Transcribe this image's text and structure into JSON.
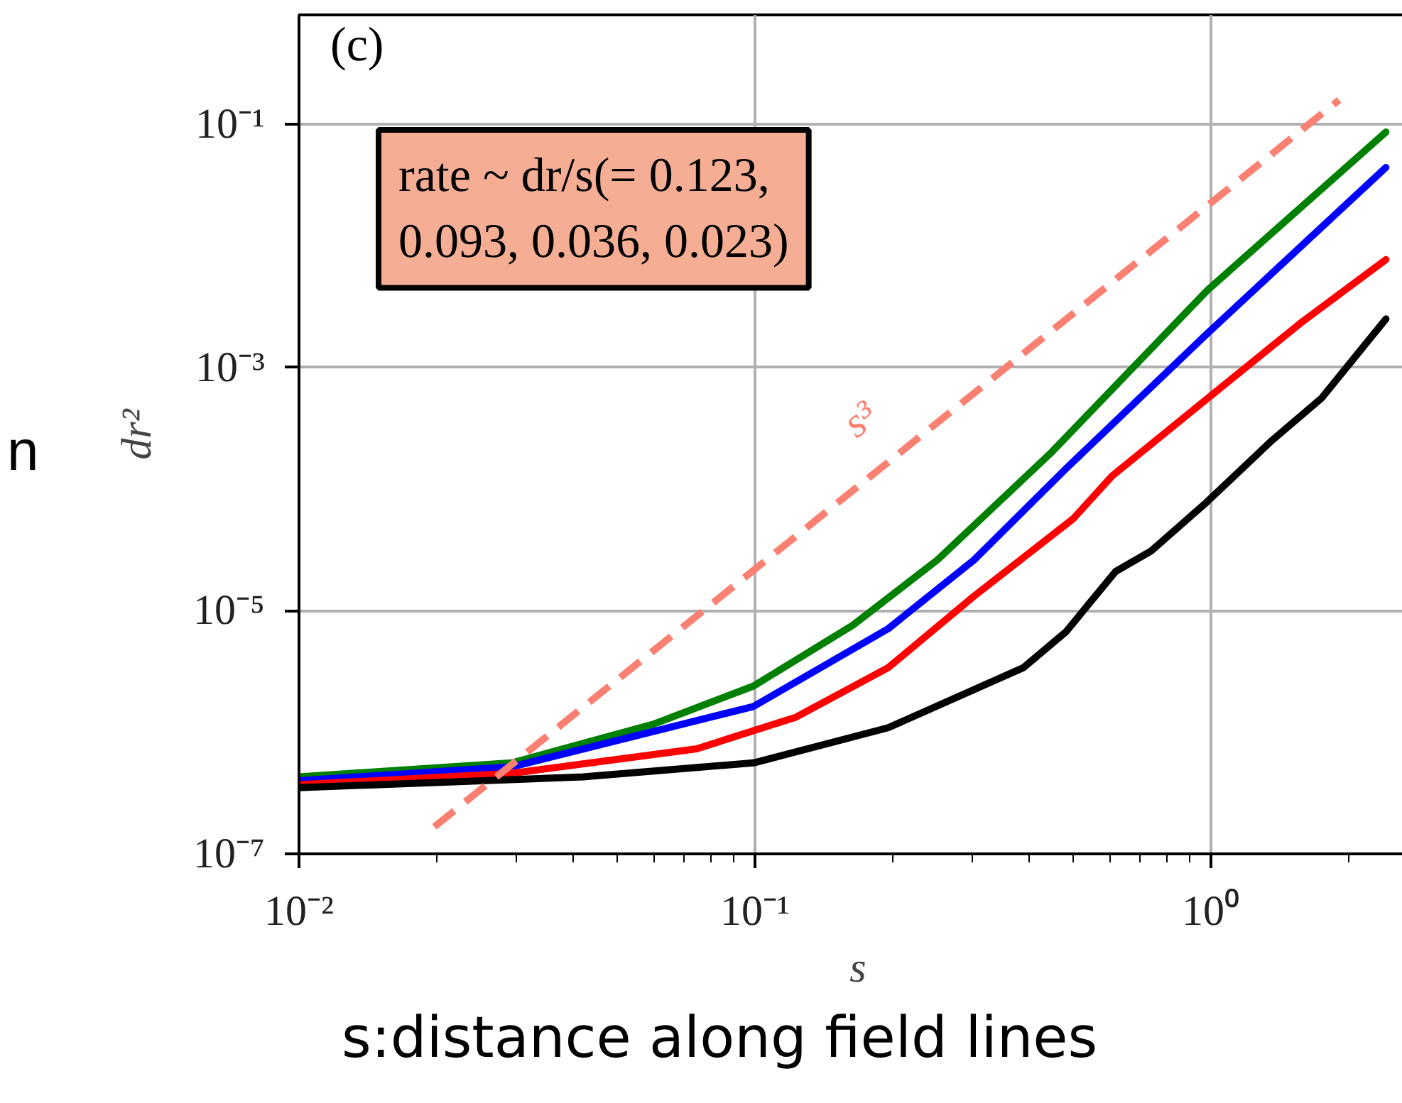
{
  "chart_data": {
    "type": "line",
    "xlabel": "s",
    "ylabel": "dr²",
    "log": "xy",
    "grid": true,
    "line_style": "solid",
    "xlim": [
      0.01,
      2.83
    ],
    "ylim": [
      1e-07,
      0.79
    ],
    "xticks": [
      {
        "value": 0.01,
        "label": "10⁻²"
      },
      {
        "value": 0.1,
        "label": "10⁻¹"
      },
      {
        "value": 1,
        "label": "10⁰"
      }
    ],
    "yticks": [
      {
        "value": 1e-07,
        "label": "10⁻⁷"
      },
      {
        "value": 1e-05,
        "label": "10⁻⁵"
      },
      {
        "value": 0.001,
        "label": "10⁻³"
      },
      {
        "value": 0.1,
        "label": "10⁻¹"
      }
    ],
    "series": [
      {
        "color": "#008000",
        "x": [
          0.01,
          0.0293,
          0.0601,
          0.0993,
          0.164,
          0.251,
          0.447,
          0.982,
          2.42
        ],
        "values": [
          4.3e-07,
          5.6e-07,
          1.17e-06,
          2.4e-06,
          7.6e-06,
          2.6e-05,
          0.0002,
          0.0043,
          0.086
        ]
      },
      {
        "color": "#0000ff",
        "x": [
          0.01,
          0.0293,
          0.0993,
          0.196,
          0.302,
          0.481,
          0.982,
          2.42
        ],
        "values": [
          4e-07,
          5.2e-07,
          1.63e-06,
          7.1e-06,
          2.6e-05,
          0.000147,
          0.0019,
          0.044
        ]
      },
      {
        "color": "#ff0000",
        "x": [
          0.01,
          0.0293,
          0.0745,
          0.123,
          0.196,
          0.302,
          0.499,
          0.607,
          0.986,
          1.57,
          2.42
        ],
        "values": [
          3.7e-07,
          4.6e-07,
          7.3e-07,
          1.33e-06,
          3.4e-06,
          1.31e-05,
          5.7e-05,
          0.000128,
          0.00056,
          0.0023,
          0.0077
        ]
      },
      {
        "color": "#000000",
        "x": [
          0.01,
          0.042,
          0.0993,
          0.196,
          0.388,
          0.481,
          0.618,
          0.74,
          0.968,
          1.36,
          1.75,
          2.42
        ],
        "values": [
          3.5e-07,
          4.3e-07,
          5.6e-07,
          1.09e-06,
          3.4e-06,
          6.7e-06,
          2.1e-05,
          3.1e-05,
          7.5e-05,
          0.00025,
          0.00056,
          0.0025
        ]
      },
      {
        "color": "#fa8072",
        "line_style": "dashed",
        "x": [
          0.0198,
          1.91
        ],
        "values": [
          1.67e-07,
          0.158
        ]
      }
    ],
    "annotations": [
      "(c)",
      "rate ~ dr/s(= 0.123,\n0.093, 0.036, 0.023)",
      "n",
      "s:distance along field lines",
      "s³"
    ]
  }
}
